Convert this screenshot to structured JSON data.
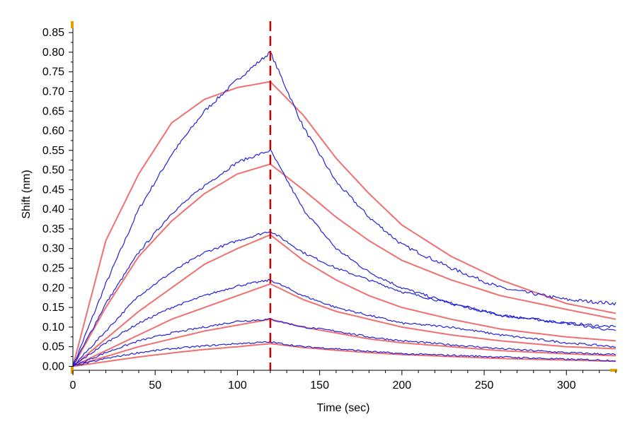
{
  "chart_data": {
    "type": "line",
    "xlabel": "Time (sec)",
    "ylabel": "Shift (nm)",
    "xlim": [
      0,
      330
    ],
    "ylim": [
      -0.01,
      0.87
    ],
    "xticks": [
      0,
      50,
      100,
      150,
      200,
      250,
      300
    ],
    "xtick_labels": [
      "0",
      "50",
      "100",
      "150",
      "200",
      "250",
      "300"
    ],
    "yticks": [
      0,
      0.05,
      0.1,
      0.15,
      0.2,
      0.25,
      0.3,
      0.35,
      0.4,
      0.45,
      0.5,
      0.55,
      0.6,
      0.65,
      0.7,
      0.75,
      0.8,
      0.85
    ],
    "ytick_labels": [
      "0.00",
      "0.05",
      "0.10",
      "0.15",
      "0.20",
      "0.25",
      "0.30",
      "0.35",
      "0.40",
      "0.45",
      "0.50",
      "0.55",
      "0.60",
      "0.65",
      "0.70",
      "0.75",
      "0.80",
      "0.85"
    ],
    "grid": false,
    "marker_line": {
      "x": 120,
      "color": "#cc0000",
      "style": "dashed"
    },
    "colors": {
      "measured": "#2020dd",
      "fit": "#f07070"
    },
    "series": [
      {
        "kind": "measured",
        "x": [
          0,
          20,
          40,
          60,
          80,
          100,
          120,
          140,
          160,
          180,
          200,
          230,
          260,
          300,
          330
        ],
        "y": [
          0.0,
          0.21,
          0.4,
          0.54,
          0.65,
          0.73,
          0.8,
          0.61,
          0.47,
          0.38,
          0.31,
          0.25,
          0.2,
          0.17,
          0.16
        ]
      },
      {
        "kind": "fit",
        "x": [
          0,
          20,
          40,
          60,
          80,
          100,
          120,
          140,
          160,
          180,
          200,
          230,
          260,
          300,
          330
        ],
        "y": [
          0.0,
          0.32,
          0.49,
          0.62,
          0.68,
          0.71,
          0.725,
          0.64,
          0.53,
          0.44,
          0.36,
          0.28,
          0.22,
          0.16,
          0.135
        ]
      },
      {
        "kind": "measured",
        "x": [
          0,
          20,
          40,
          60,
          80,
          100,
          120,
          140,
          160,
          180,
          200,
          230,
          260,
          300,
          330
        ],
        "y": [
          0.0,
          0.16,
          0.29,
          0.39,
          0.46,
          0.52,
          0.55,
          0.4,
          0.3,
          0.24,
          0.2,
          0.16,
          0.13,
          0.11,
          0.1
        ]
      },
      {
        "kind": "fit",
        "x": [
          0,
          20,
          40,
          60,
          80,
          100,
          120,
          140,
          160,
          180,
          200,
          230,
          260,
          300,
          330
        ],
        "y": [
          0.0,
          0.15,
          0.28,
          0.37,
          0.44,
          0.49,
          0.515,
          0.45,
          0.38,
          0.32,
          0.27,
          0.22,
          0.18,
          0.145,
          0.12
        ]
      },
      {
        "kind": "measured",
        "x": [
          0,
          20,
          40,
          60,
          80,
          100,
          120,
          140,
          160,
          180,
          200,
          230,
          260,
          300,
          330
        ],
        "y": [
          0.0,
          0.09,
          0.18,
          0.24,
          0.29,
          0.32,
          0.345,
          0.29,
          0.25,
          0.22,
          0.19,
          0.16,
          0.13,
          0.11,
          0.09
        ]
      },
      {
        "kind": "fit",
        "x": [
          0,
          20,
          40,
          60,
          80,
          100,
          120,
          140,
          160,
          180,
          200,
          230,
          260,
          300,
          330
        ],
        "y": [
          0.0,
          0.07,
          0.14,
          0.2,
          0.26,
          0.3,
          0.335,
          0.27,
          0.22,
          0.18,
          0.15,
          0.12,
          0.095,
          0.075,
          0.065
        ]
      },
      {
        "kind": "measured",
        "x": [
          0,
          20,
          40,
          60,
          80,
          100,
          120,
          140,
          160,
          180,
          200,
          230,
          260,
          300,
          330
        ],
        "y": [
          0.0,
          0.06,
          0.11,
          0.15,
          0.18,
          0.205,
          0.22,
          0.18,
          0.15,
          0.13,
          0.11,
          0.1,
          0.08,
          0.06,
          0.05
        ]
      },
      {
        "kind": "fit",
        "x": [
          0,
          20,
          40,
          60,
          80,
          100,
          120,
          140,
          160,
          180,
          200,
          230,
          260,
          300,
          330
        ],
        "y": [
          0.0,
          0.04,
          0.08,
          0.12,
          0.15,
          0.18,
          0.21,
          0.17,
          0.14,
          0.12,
          0.1,
          0.08,
          0.065,
          0.05,
          0.045
        ]
      },
      {
        "kind": "measured",
        "x": [
          0,
          20,
          40,
          60,
          80,
          100,
          120,
          140,
          160,
          180,
          200,
          230,
          260,
          300,
          330
        ],
        "y": [
          0.0,
          0.035,
          0.065,
          0.085,
          0.1,
          0.115,
          0.12,
          0.1,
          0.09,
          0.075,
          0.065,
          0.055,
          0.045,
          0.035,
          0.03
        ]
      },
      {
        "kind": "fit",
        "x": [
          0,
          20,
          40,
          60,
          80,
          100,
          120,
          140,
          160,
          180,
          200,
          230,
          260,
          300,
          330
        ],
        "y": [
          0.0,
          0.025,
          0.05,
          0.07,
          0.09,
          0.105,
          0.12,
          0.1,
          0.085,
          0.07,
          0.06,
          0.05,
          0.04,
          0.032,
          0.027
        ]
      },
      {
        "kind": "measured",
        "x": [
          0,
          20,
          40,
          60,
          80,
          100,
          120,
          140,
          160,
          180,
          200,
          230,
          260,
          300,
          330
        ],
        "y": [
          0.0,
          0.02,
          0.035,
          0.045,
          0.052,
          0.058,
          0.062,
          0.05,
          0.045,
          0.038,
          0.032,
          0.028,
          0.024,
          0.018,
          0.015
        ]
      },
      {
        "kind": "fit",
        "x": [
          0,
          20,
          40,
          60,
          80,
          100,
          120,
          140,
          160,
          180,
          200,
          230,
          260,
          300,
          330
        ],
        "y": [
          0.0,
          0.012,
          0.024,
          0.034,
          0.043,
          0.05,
          0.058,
          0.048,
          0.041,
          0.035,
          0.03,
          0.025,
          0.02,
          0.016,
          0.013
        ]
      }
    ]
  }
}
